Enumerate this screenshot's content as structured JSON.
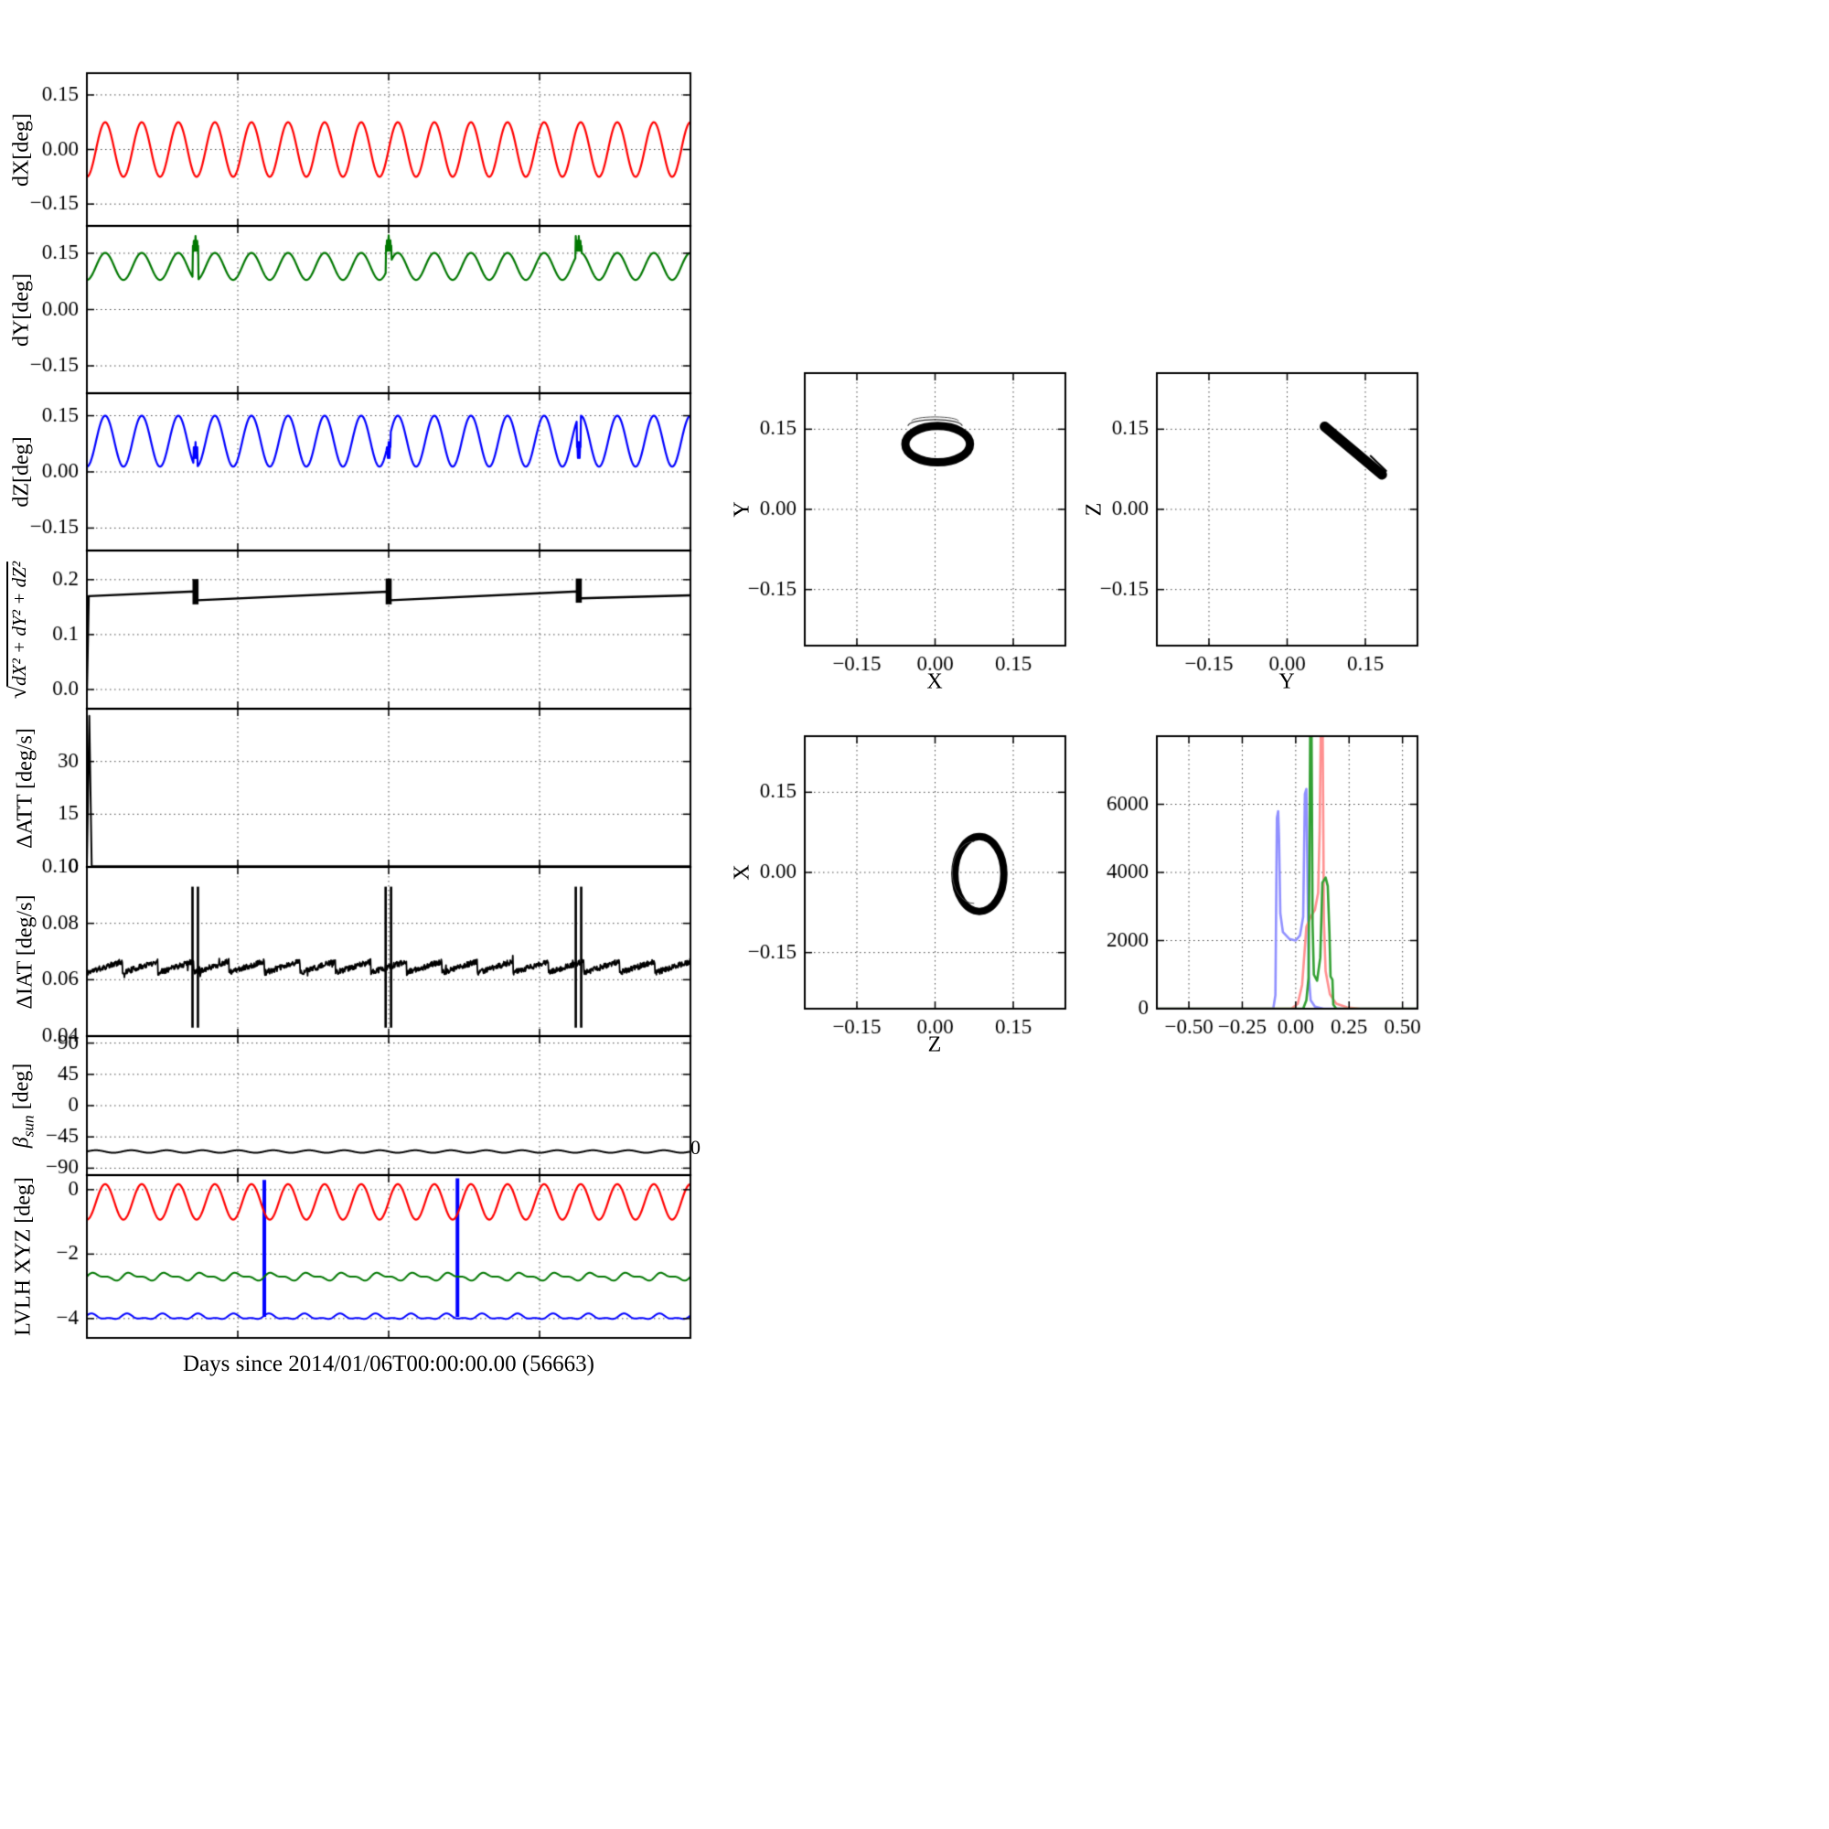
{
  "figure": {
    "xlabel": "Days since 2014/01/06T00:00:00.00 (56663)",
    "stray_right_label": "0",
    "background": "#ffffff"
  },
  "chart_data": [
    {
      "type": "line",
      "id": "dX",
      "ylabel": "dX[deg]",
      "xlim": [
        0,
        1
      ],
      "ylim": [
        -0.21,
        0.21
      ],
      "xgrid": [
        0.25,
        0.5,
        0.75
      ],
      "yticks": [
        {
          "v": 0.15,
          "label": "0.15"
        },
        {
          "v": 0.0,
          "label": "0.00"
        },
        {
          "v": -0.15,
          "label": "−0.15"
        }
      ],
      "series": [
        {
          "type": "sine",
          "color": "#ff0000",
          "lw": 2.2,
          "mean": 0.0,
          "amp": 0.075,
          "cycles": 16.5,
          "phase_deg": -90
        }
      ]
    },
    {
      "type": "line",
      "id": "dY",
      "ylabel": "dY[deg]",
      "xlim": [
        0,
        1
      ],
      "ylim": [
        -0.223,
        0.223
      ],
      "xgrid": [
        0.25,
        0.5,
        0.75
      ],
      "yticks": [
        {
          "v": 0.15,
          "label": "0.15"
        },
        {
          "v": 0.0,
          "label": "0.00"
        },
        {
          "v": -0.15,
          "label": "−0.15"
        }
      ],
      "series": [
        {
          "type": "sine",
          "color": "#007700",
          "lw": 2.2,
          "mean": 0.115,
          "amp": 0.036,
          "cycles": 16.5,
          "phase_deg": -90,
          "start_y": 0.0,
          "bursts": [
            {
              "x": 0.18,
              "w": 0.01,
              "y0": 0.15,
              "y1": 0.196
            },
            {
              "x": 0.5,
              "w": 0.01,
              "y0": 0.15,
              "y1": 0.198
            },
            {
              "x": 0.815,
              "w": 0.01,
              "y0": 0.15,
              "y1": 0.196
            }
          ]
        }
      ]
    },
    {
      "type": "line",
      "id": "dZ",
      "ylabel": "dZ[deg]",
      "xlim": [
        0,
        1
      ],
      "ylim": [
        -0.21,
        0.21
      ],
      "xgrid": [
        0.25,
        0.5,
        0.75
      ],
      "yticks": [
        {
          "v": 0.15,
          "label": "0.15"
        },
        {
          "v": 0.0,
          "label": "0.00"
        },
        {
          "v": -0.15,
          "label": "−0.15"
        }
      ],
      "series": [
        {
          "type": "sine",
          "color": "#0000ff",
          "lw": 2.2,
          "mean": 0.082,
          "amp": 0.068,
          "cycles": 16.5,
          "phase_deg": -90,
          "start_y": 0.0,
          "bursts": [
            {
              "x": 0.18,
              "w": 0.007,
              "y0": 0.03,
              "y1": 0.08
            },
            {
              "x": 0.5,
              "w": 0.007,
              "y0": 0.03,
              "y1": 0.08
            },
            {
              "x": 0.815,
              "w": 0.007,
              "y0": 0.03,
              "y1": 0.08
            }
          ]
        }
      ]
    },
    {
      "type": "line",
      "id": "magnitude",
      "ylabel_radical": "√",
      "ylabel_radicand": "dX² + dY² + dZ²",
      "xlim": [
        0,
        1
      ],
      "ylim": [
        -0.035,
        0.253
      ],
      "xgrid": [
        0.25,
        0.5,
        0.75
      ],
      "yticks": [
        {
          "v": 0.2,
          "label": "0.2"
        },
        {
          "v": 0.1,
          "label": "0.1"
        },
        {
          "v": 0.0,
          "label": "0.0"
        }
      ],
      "series": [
        {
          "type": "piecewise",
          "color": "#000000",
          "lw": 2.4,
          "points": [
            [
              0,
              0
            ],
            [
              0.003,
              0.17
            ],
            [
              0.178,
              0.1785
            ],
            [
              0.183,
              0.1625
            ],
            [
              0.498,
              0.178
            ],
            [
              0.503,
              0.1625
            ],
            [
              0.813,
              0.1785
            ],
            [
              0.818,
              0.166
            ],
            [
              1.0,
              0.1715
            ]
          ]
        },
        {
          "type": "burstrect",
          "color": "#000000",
          "bursts": [
            {
              "x": 0.18,
              "w": 0.01,
              "y0": 0.155,
              "y1": 0.201
            },
            {
              "x": 0.5,
              "w": 0.01,
              "y0": 0.155,
              "y1": 0.202
            },
            {
              "x": 0.815,
              "w": 0.01,
              "y0": 0.158,
              "y1": 0.202
            }
          ]
        }
      ]
    },
    {
      "type": "line",
      "id": "delta-att",
      "ylabel": "ΔATT [deg/s]",
      "xlim": [
        0,
        1
      ],
      "ylim": [
        0,
        45
      ],
      "xgrid": [
        0.25,
        0.5,
        0.75
      ],
      "yticks": [
        {
          "v": 30,
          "label": "30"
        },
        {
          "v": 15,
          "label": "15"
        },
        {
          "v": 0,
          "label": "0"
        }
      ],
      "series": [
        {
          "type": "piecewise",
          "color": "#000000",
          "lw": 2.0,
          "points": [
            [
              0,
              0.2
            ],
            [
              0.004,
              43
            ],
            [
              0.008,
              0.2
            ],
            [
              1,
              0.2
            ]
          ]
        }
      ]
    },
    {
      "type": "line",
      "id": "delta-iat",
      "ylabel": "ΔIAT [deg/s]",
      "xlim": [
        0,
        1
      ],
      "ylim": [
        0.04,
        0.1
      ],
      "xgrid": [
        0.25,
        0.5,
        0.75
      ],
      "yticks": [
        {
          "v": 0.1,
          "label": "0.10"
        },
        {
          "v": 0.08,
          "label": "0.08"
        },
        {
          "v": 0.06,
          "label": "0.06"
        },
        {
          "v": 0.04,
          "label": "0.04"
        }
      ],
      "series": [
        {
          "type": "jagged",
          "color": "#000000",
          "lw": 1.8,
          "mean": 0.0645,
          "saw_amp": 0.004,
          "saw_cycles": 17,
          "noise": 0.001,
          "seed": 11
        },
        {
          "type": "burstrect",
          "color": "#000000",
          "bursts": [
            {
              "x": 0.175,
              "w": 0.004,
              "y0": 0.043,
              "y1": 0.093
            },
            {
              "x": 0.184,
              "w": 0.004,
              "y0": 0.043,
              "y1": 0.093
            },
            {
              "x": 0.495,
              "w": 0.004,
              "y0": 0.043,
              "y1": 0.093
            },
            {
              "x": 0.504,
              "w": 0.004,
              "y0": 0.043,
              "y1": 0.093
            },
            {
              "x": 0.81,
              "w": 0.004,
              "y0": 0.043,
              "y1": 0.093
            },
            {
              "x": 0.819,
              "w": 0.004,
              "y0": 0.043,
              "y1": 0.093
            }
          ]
        }
      ]
    },
    {
      "type": "line",
      "id": "beta-sun",
      "ylabel_main": "β",
      "ylabel_sub": "sun",
      "ylabel_rest": " [deg]",
      "xlim": [
        0,
        1
      ],
      "ylim": [
        -100,
        100
      ],
      "xgrid": [
        0.25,
        0.5,
        0.75
      ],
      "yticks": [
        {
          "v": 90,
          "label": "90"
        },
        {
          "v": 45,
          "label": "45"
        },
        {
          "v": 0,
          "label": "0"
        },
        {
          "v": -45,
          "label": "−45"
        },
        {
          "v": -90,
          "label": "−90"
        }
      ],
      "series": [
        {
          "type": "sine",
          "color": "#000000",
          "lw": 2.0,
          "mean": -66,
          "amp": 1.8,
          "cycles": 17,
          "phase_deg": 0
        }
      ]
    },
    {
      "type": "line",
      "id": "lvlh-xyz",
      "ylabel": "LVLH XYZ [deg]",
      "xlim": [
        0,
        1
      ],
      "ylim": [
        -4.6,
        0.45
      ],
      "xgrid": [
        0.25,
        0.5,
        0.75
      ],
      "yticks": [
        {
          "v": 0,
          "label": "0"
        },
        {
          "v": -2,
          "label": "−2"
        },
        {
          "v": -4,
          "label": "−4"
        }
      ],
      "series": [
        {
          "type": "vline",
          "color": "#0000ff",
          "lw": 4,
          "lines": [
            {
              "x": 0.294,
              "y0": -3.95,
              "y1": 0.3
            },
            {
              "x": 0.614,
              "y0": -3.95,
              "y1": 0.35
            }
          ]
        },
        {
          "type": "sine",
          "color": "#ff0000",
          "lw": 2.2,
          "mean": -0.38,
          "amp": 0.55,
          "cycles": 16.5,
          "phase_deg": -90
        },
        {
          "type": "sine2",
          "color": "#007700",
          "lw": 2.0,
          "mean": -2.7,
          "amp": 0.09,
          "cycles": 17,
          "amp2": 0.05,
          "cycles2": 34,
          "phase_deg": 0
        },
        {
          "type": "sine2",
          "color": "#0000ff",
          "lw": 2.0,
          "mean": -3.95,
          "amp": 0.07,
          "cycles": 17,
          "amp2": 0.04,
          "cycles2": 34,
          "phase_deg": 40
        }
      ]
    },
    {
      "type": "scatter",
      "id": "Y-vs-X",
      "xlabel": "X",
      "ylabel": "Y",
      "xlim": [
        -0.25,
        0.25
      ],
      "ylim": [
        -0.255,
        0.255
      ],
      "xticks": [
        {
          "v": -0.15,
          "label": "−0.15"
        },
        {
          "v": 0.0,
          "label": "0.00"
        },
        {
          "v": 0.15,
          "label": "0.15"
        }
      ],
      "yticks": [
        {
          "v": 0.15,
          "label": "0.15"
        },
        {
          "v": 0.0,
          "label": "0.00"
        },
        {
          "v": -0.15,
          "label": "−0.15"
        }
      ],
      "series": [
        {
          "type": "ellipse",
          "color": "#000000",
          "lw": 9,
          "cx": 0.005,
          "cy": 0.122,
          "rx": 0.062,
          "ry": 0.034
        },
        {
          "type": "arc",
          "color": "#333333",
          "lw": 1.2,
          "cx": 0.0,
          "cy": 0.156,
          "rx": 0.052,
          "ry": 0.012,
          "t0": 180,
          "t1": 360
        },
        {
          "type": "arc",
          "color": "#555555",
          "lw": 1.0,
          "cx": 0.0,
          "cy": 0.165,
          "rx": 0.045,
          "ry": 0.008,
          "t0": 180,
          "t1": 360
        }
      ]
    },
    {
      "type": "scatter",
      "id": "Z-vs-Y",
      "xlabel": "Y",
      "ylabel": "Z",
      "xlim": [
        -0.25,
        0.25
      ],
      "ylim": [
        -0.255,
        0.255
      ],
      "xticks": [
        {
          "v": -0.15,
          "label": "−0.15"
        },
        {
          "v": 0.0,
          "label": "0.00"
        },
        {
          "v": 0.15,
          "label": "0.15"
        }
      ],
      "yticks": [
        {
          "v": 0.15,
          "label": "0.15"
        },
        {
          "v": 0.0,
          "label": "0.00"
        },
        {
          "v": -0.15,
          "label": "−0.15"
        }
      ],
      "series": [
        {
          "type": "thickline",
          "color": "#000000",
          "lw": 11,
          "x0": 0.072,
          "y0": 0.155,
          "x1": 0.182,
          "y1": 0.065
        },
        {
          "type": "thickline",
          "color": "#000000",
          "lw": 2,
          "x0": 0.16,
          "y0": 0.1,
          "x1": 0.19,
          "y1": 0.072
        }
      ]
    },
    {
      "type": "scatter",
      "id": "X-vs-Z",
      "xlabel": "Z",
      "ylabel": "X",
      "xlim": [
        -0.25,
        0.25
      ],
      "ylim": [
        -0.255,
        0.255
      ],
      "xticks": [
        {
          "v": -0.15,
          "label": "−0.15"
        },
        {
          "v": 0.0,
          "label": "0.00"
        },
        {
          "v": 0.15,
          "label": "0.15"
        }
      ],
      "yticks": [
        {
          "v": 0.15,
          "label": "0.15"
        },
        {
          "v": 0.0,
          "label": "0.00"
        },
        {
          "v": -0.15,
          "label": "−0.15"
        }
      ],
      "series": [
        {
          "type": "ellipse",
          "color": "#000000",
          "lw": 8,
          "cx": 0.085,
          "cy": -0.003,
          "rx": 0.047,
          "ry": 0.07
        },
        {
          "type": "arc",
          "color": "#444444",
          "lw": 1.0,
          "cx": 0.075,
          "cy": 0.0,
          "rx": 0.042,
          "ry": 0.058,
          "t0": 90,
          "t1": 270
        }
      ]
    },
    {
      "type": "line",
      "id": "attitude-histogram",
      "xlim": [
        -0.65,
        0.57
      ],
      "ylim": [
        0,
        8000
      ],
      "xticks": [
        {
          "v": -0.5,
          "label": "−0.50"
        },
        {
          "v": -0.25,
          "label": "−0.25"
        },
        {
          "v": 0.0,
          "label": "0.00"
        },
        {
          "v": 0.25,
          "label": "0.25"
        },
        {
          "v": 0.5,
          "label": "0.50"
        }
      ],
      "yticks": [
        {
          "v": 0,
          "label": "0"
        },
        {
          "v": 2000,
          "label": "2000"
        },
        {
          "v": 4000,
          "label": "4000"
        },
        {
          "v": 6000,
          "label": "6000"
        }
      ],
      "series": [
        {
          "type": "piecewise",
          "color": "#9090ff",
          "lw": 2.6,
          "points": [
            [
              -0.65,
              0
            ],
            [
              -0.105,
              0
            ],
            [
              -0.095,
              400
            ],
            [
              -0.088,
              5600
            ],
            [
              -0.082,
              5800
            ],
            [
              -0.078,
              5000
            ],
            [
              -0.072,
              2800
            ],
            [
              -0.06,
              2250
            ],
            [
              -0.03,
              2050
            ],
            [
              0.0,
              2000
            ],
            [
              0.02,
              2150
            ],
            [
              0.035,
              2700
            ],
            [
              0.043,
              6300
            ],
            [
              0.05,
              6450
            ],
            [
              0.056,
              3500
            ],
            [
              0.062,
              900
            ],
            [
              0.07,
              250
            ],
            [
              0.09,
              60
            ],
            [
              0.13,
              0
            ],
            [
              0.57,
              0
            ]
          ]
        },
        {
          "type": "piecewise",
          "color": "#ff9090",
          "lw": 2.6,
          "points": [
            [
              -0.65,
              0
            ],
            [
              -0.02,
              0
            ],
            [
              0.01,
              150
            ],
            [
              0.03,
              700
            ],
            [
              0.05,
              2400
            ],
            [
              0.07,
              2700
            ],
            [
              0.09,
              2900
            ],
            [
              0.105,
              3400
            ],
            [
              0.112,
              5200
            ],
            [
              0.118,
              8400
            ],
            [
              0.126,
              8400
            ],
            [
              0.132,
              2600
            ],
            [
              0.14,
              1100
            ],
            [
              0.16,
              420
            ],
            [
              0.19,
              150
            ],
            [
              0.24,
              40
            ],
            [
              0.3,
              0
            ],
            [
              0.57,
              0
            ]
          ]
        },
        {
          "type": "piecewise",
          "color": "#33a033",
          "lw": 2.6,
          "points": [
            [
              -0.65,
              0
            ],
            [
              0.035,
              0
            ],
            [
              0.05,
              250
            ],
            [
              0.06,
              900
            ],
            [
              0.064,
              4200
            ],
            [
              0.068,
              8300
            ],
            [
              0.074,
              8300
            ],
            [
              0.079,
              2500
            ],
            [
              0.085,
              1000
            ],
            [
              0.1,
              820
            ],
            [
              0.115,
              1500
            ],
            [
              0.125,
              3700
            ],
            [
              0.14,
              3850
            ],
            [
              0.15,
              3600
            ],
            [
              0.158,
              2200
            ],
            [
              0.163,
              950
            ],
            [
              0.172,
              850
            ],
            [
              0.176,
              120
            ],
            [
              0.19,
              0
            ],
            [
              0.57,
              0
            ]
          ]
        }
      ]
    }
  ]
}
